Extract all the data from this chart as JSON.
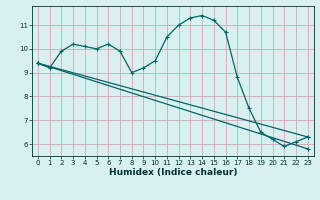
{
  "xlabel": "Humidex (Indice chaleur)",
  "bg_color": "#d8f0f0",
  "grid_color": "#d4a8b8",
  "line_color": "#006666",
  "xlim": [
    -0.5,
    23.5
  ],
  "ylim": [
    5.5,
    11.8
  ],
  "yticks": [
    6,
    7,
    8,
    9,
    10,
    11
  ],
  "xticks": [
    0,
    1,
    2,
    3,
    4,
    5,
    6,
    7,
    8,
    9,
    10,
    11,
    12,
    13,
    14,
    15,
    16,
    17,
    18,
    19,
    20,
    21,
    22,
    23
  ],
  "curve1_x": [
    0,
    1,
    2,
    3,
    4,
    5,
    6,
    7,
    8,
    9,
    10,
    11,
    12,
    13,
    14,
    15,
    16,
    17,
    18,
    19,
    20,
    21,
    22,
    23
  ],
  "curve1_y": [
    9.4,
    9.2,
    9.9,
    10.2,
    10.1,
    10.0,
    10.2,
    9.9,
    9.0,
    9.2,
    9.5,
    10.5,
    11.0,
    11.3,
    11.4,
    11.2,
    10.7,
    8.8,
    7.5,
    6.5,
    6.2,
    5.9,
    6.1,
    6.3
  ],
  "curve2_x": [
    0,
    23
  ],
  "curve2_y": [
    9.4,
    6.3
  ],
  "curve3_x": [
    0,
    23
  ],
  "curve3_y": [
    9.4,
    5.8
  ]
}
